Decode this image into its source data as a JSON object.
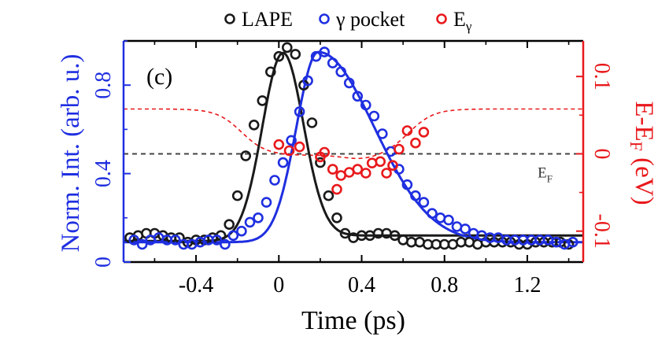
{
  "chart_data": {
    "type": "scatter",
    "panel_label": "(c)",
    "xlabel": "Time (ps)",
    "ylabel_left": "Norm. Int. (arb. u.)",
    "ylabel_right_main": "E-E",
    "ylabel_right_sub": "F",
    "ylabel_right_unit": "(eV)",
    "xlim": [
      -0.75,
      1.47
    ],
    "ylim_left": [
      0,
      1.0
    ],
    "ylim_right": [
      -0.14,
      0.146
    ],
    "x_ticks": [
      -0.4,
      0,
      0.4,
      0.8,
      1.2
    ],
    "x_tick_labels": [
      "-0.4",
      "0",
      "0.4",
      "0.8",
      "1.2"
    ],
    "y_ticks_left": [
      0,
      0.4,
      0.8
    ],
    "y_tick_labels_left": [
      "0",
      "0.4",
      "0.8"
    ],
    "y_ticks_right": [
      -0.1,
      0,
      0.1
    ],
    "y_tick_labels_right": [
      "-0.1",
      "0",
      "0.1"
    ],
    "ef_label_main": "E",
    "ef_label_sub": "F",
    "legend_position": "top",
    "legend": [
      {
        "main": "LAPE",
        "sub": "",
        "color": "#1a1a1a"
      },
      {
        "main": "γ pocket",
        "sub": "",
        "color": "#1f2fe0"
      },
      {
        "main": "E",
        "sub": "γ",
        "color": "#e8191c"
      }
    ],
    "colors": {
      "lape": "#1a1a1a",
      "gamma_pocket": "#1f2fe0",
      "e_gamma": "#e8191c",
      "ef_line": "#444444"
    },
    "series": [
      {
        "name": "LAPE",
        "axis": "left",
        "points": [
          [
            -0.72,
            0.11
          ],
          [
            -0.68,
            0.12
          ],
          [
            -0.64,
            0.13
          ],
          [
            -0.6,
            0.13
          ],
          [
            -0.56,
            0.12
          ],
          [
            -0.52,
            0.11
          ],
          [
            -0.48,
            0.11
          ],
          [
            -0.44,
            0.09
          ],
          [
            -0.4,
            0.1
          ],
          [
            -0.36,
            0.1
          ],
          [
            -0.32,
            0.11
          ],
          [
            -0.28,
            0.12
          ],
          [
            -0.24,
            0.17
          ],
          [
            -0.2,
            0.3
          ],
          [
            -0.16,
            0.48
          ],
          [
            -0.12,
            0.62
          ],
          [
            -0.08,
            0.73
          ],
          [
            -0.04,
            0.86
          ],
          [
            0.0,
            0.93
          ],
          [
            0.04,
            0.97
          ],
          [
            0.08,
            0.94
          ],
          [
            0.12,
            0.8
          ],
          [
            0.16,
            0.63
          ],
          [
            0.2,
            0.45
          ],
          [
            0.24,
            0.3
          ],
          [
            0.28,
            0.2
          ],
          [
            0.32,
            0.13
          ],
          [
            0.36,
            0.11
          ],
          [
            0.4,
            0.12
          ],
          [
            0.44,
            0.12
          ],
          [
            0.48,
            0.13
          ],
          [
            0.52,
            0.13
          ],
          [
            0.56,
            0.12
          ],
          [
            0.6,
            0.1
          ],
          [
            0.64,
            0.09
          ],
          [
            0.68,
            0.09
          ],
          [
            0.72,
            0.08
          ],
          [
            0.76,
            0.08
          ],
          [
            0.8,
            0.08
          ],
          [
            0.84,
            0.08
          ],
          [
            0.88,
            0.09
          ],
          [
            0.92,
            0.09
          ],
          [
            0.96,
            0.08
          ],
          [
            1.0,
            0.09
          ],
          [
            1.04,
            0.09
          ],
          [
            1.08,
            0.09
          ],
          [
            1.12,
            0.09
          ],
          [
            1.16,
            0.08
          ],
          [
            1.2,
            0.08
          ],
          [
            1.24,
            0.09
          ],
          [
            1.28,
            0.09
          ],
          [
            1.32,
            0.09
          ],
          [
            1.36,
            0.09
          ],
          [
            1.4,
            0.08
          ]
        ]
      },
      {
        "name": "γ pocket",
        "axis": "left",
        "points": [
          [
            -0.7,
            0.1
          ],
          [
            -0.66,
            0.08
          ],
          [
            -0.62,
            0.1
          ],
          [
            -0.58,
            0.11
          ],
          [
            -0.54,
            0.1
          ],
          [
            -0.5,
            0.1
          ],
          [
            -0.46,
            0.08
          ],
          [
            -0.42,
            0.08
          ],
          [
            -0.38,
            0.09
          ],
          [
            -0.34,
            0.1
          ],
          [
            -0.3,
            0.1
          ],
          [
            -0.26,
            0.08
          ],
          [
            -0.22,
            0.12
          ],
          [
            -0.18,
            0.14
          ],
          [
            -0.14,
            0.18
          ],
          [
            -0.1,
            0.2
          ],
          [
            -0.06,
            0.27
          ],
          [
            -0.02,
            0.37
          ],
          [
            0.02,
            0.45
          ],
          [
            0.06,
            0.55
          ],
          [
            0.1,
            0.68
          ],
          [
            0.14,
            0.82
          ],
          [
            0.18,
            0.93
          ],
          [
            0.22,
            0.95
          ],
          [
            0.26,
            0.9
          ],
          [
            0.3,
            0.86
          ],
          [
            0.34,
            0.81
          ],
          [
            0.38,
            0.75
          ],
          [
            0.42,
            0.71
          ],
          [
            0.46,
            0.66
          ],
          [
            0.5,
            0.58
          ],
          [
            0.54,
            0.5
          ],
          [
            0.58,
            0.42
          ],
          [
            0.62,
            0.35
          ],
          [
            0.66,
            0.3
          ],
          [
            0.7,
            0.27
          ],
          [
            0.74,
            0.22
          ],
          [
            0.78,
            0.2
          ],
          [
            0.82,
            0.19
          ],
          [
            0.86,
            0.16
          ],
          [
            0.9,
            0.15
          ],
          [
            0.94,
            0.13
          ],
          [
            0.98,
            0.12
          ],
          [
            1.02,
            0.11
          ],
          [
            1.06,
            0.11
          ],
          [
            1.1,
            0.1
          ],
          [
            1.14,
            0.1
          ],
          [
            1.18,
            0.1
          ],
          [
            1.22,
            0.1
          ],
          [
            1.26,
            0.1
          ],
          [
            1.3,
            0.1
          ],
          [
            1.34,
            0.09
          ],
          [
            1.38,
            0.08
          ],
          [
            1.42,
            0.09
          ]
        ]
      },
      {
        "name": "E_γ",
        "axis": "right",
        "points": [
          [
            0.0,
            0.012
          ],
          [
            0.05,
            0.004
          ],
          [
            0.1,
            0.009
          ],
          [
            0.2,
            -0.004
          ],
          [
            0.22,
            0.002
          ],
          [
            0.26,
            -0.02
          ],
          [
            0.28,
            -0.046
          ],
          [
            0.3,
            -0.028
          ],
          [
            0.34,
            -0.024
          ],
          [
            0.38,
            -0.02
          ],
          [
            0.42,
            -0.025
          ],
          [
            0.45,
            -0.012
          ],
          [
            0.49,
            -0.01
          ],
          [
            0.52,
            -0.025
          ],
          [
            0.55,
            -0.015
          ],
          [
            0.58,
            0.006
          ],
          [
            0.62,
            0.03
          ],
          [
            0.66,
            0.014
          ],
          [
            0.7,
            0.028
          ]
        ]
      }
    ]
  }
}
